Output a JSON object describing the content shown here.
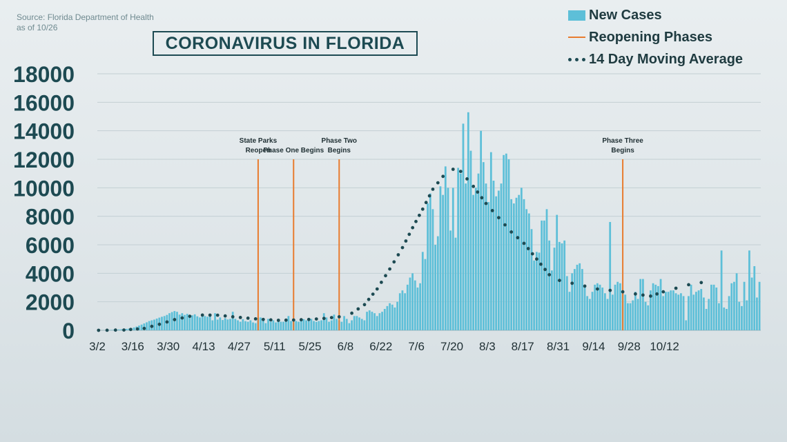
{
  "source": {
    "line1": "Source: Florida Department of Health",
    "line2": "as of 10/26"
  },
  "title": "CORONAVIRUS IN FLORIDA",
  "legend": [
    {
      "label": "New Cases",
      "kind": "bar",
      "color": "#5dbfd8"
    },
    {
      "label": "Reopening Phases",
      "kind": "line",
      "color": "#e87b2e"
    },
    {
      "label": "14 Day Moving Average",
      "kind": "dots",
      "color": "#1d4a52"
    }
  ],
  "colors": {
    "bar": "#5dbfd8",
    "phase": "#e87b2e",
    "average": "#1d4a52",
    "axis_text": "#1d4a52",
    "grid": "#c3cfd3"
  },
  "chart_data": {
    "type": "bar",
    "x_start_date": "3/2",
    "x_tick_labels": [
      "3/2",
      "3/16",
      "3/30",
      "4/13",
      "4/27",
      "5/11",
      "5/25",
      "6/8",
      "6/22",
      "7/6",
      "7/20",
      "8/3",
      "8/17",
      "8/31",
      "9/14",
      "9/28",
      "10/12"
    ],
    "ylim": [
      0,
      18000
    ],
    "y_ticks": [
      0,
      2000,
      4000,
      6000,
      8000,
      10000,
      12000,
      14000,
      16000,
      18000
    ],
    "grid": true,
    "series": [
      {
        "name": "New Cases",
        "type": "bar",
        "values": [
          2,
          5,
          10,
          15,
          20,
          30,
          40,
          50,
          60,
          70,
          80,
          100,
          120,
          150,
          200,
          260,
          330,
          400,
          480,
          560,
          650,
          700,
          750,
          820,
          890,
          950,
          1000,
          1080,
          1200,
          1280,
          1350,
          1300,
          1100,
          1200,
          1080,
          1150,
          1000,
          1050,
          1120,
          980,
          900,
          1050,
          1000,
          950,
          1100,
          700,
          1200,
          750,
          900,
          720,
          850,
          760,
          800,
          1300,
          800,
          700,
          600,
          780,
          640,
          600,
          700,
          550,
          500,
          900,
          900,
          700,
          500,
          800,
          600,
          700,
          550,
          800,
          600,
          600,
          650,
          1000,
          650,
          700,
          650,
          600,
          750,
          780,
          700,
          800,
          800,
          650,
          600,
          650,
          700,
          1200,
          900,
          600,
          700,
          1100,
          800,
          700,
          600,
          1000,
          800,
          500,
          700,
          1000,
          1000,
          900,
          800,
          700,
          1300,
          1400,
          1300,
          1200,
          1000,
          1200,
          1300,
          1500,
          1700,
          1900,
          1800,
          1600,
          2000,
          2600,
          2800,
          2600,
          3200,
          3700,
          4000,
          3500,
          3000,
          3300,
          5500,
          5000,
          8900,
          9600,
          8500,
          6000,
          6600,
          10100,
          9500,
          11500,
          10000,
          7000,
          10000,
          6500,
          11400,
          11000,
          14500,
          10300,
          15300,
          12600,
          9500,
          10000,
          11000,
          14000,
          11800,
          10300,
          9000,
          12500,
          10500,
          9400,
          9800,
          10300,
          12300,
          12400,
          12000,
          9200,
          8900,
          9300,
          9500,
          10000,
          9200,
          8500,
          8200,
          7100,
          4900,
          5500,
          5450,
          7700,
          7700,
          8500,
          6300,
          4200,
          5800,
          8100,
          6200,
          6100,
          6300,
          3800,
          2700,
          4000,
          4300,
          4600,
          4700,
          4300,
          3100,
          2400,
          2200,
          2700,
          3200,
          3300,
          3200,
          3000,
          2600,
          2200,
          7600,
          2500,
          3200,
          3400,
          3300,
          2800,
          2500,
          1900,
          1900,
          2100,
          2700,
          2200,
          3600,
          3600,
          2000,
          1750,
          2800,
          3300,
          3200,
          3100,
          3600,
          2400,
          2700,
          2700,
          2800,
          2800,
          2600,
          2500,
          2600,
          2400,
          700,
          2400,
          3200,
          2500,
          2700,
          2800,
          2900,
          2300,
          1500,
          2200,
          3200,
          3200,
          3000,
          1900,
          5600,
          1600,
          1500,
          2400,
          3300,
          3400,
          4000,
          2000,
          1700,
          3400,
          2100,
          5600,
          3700,
          4500,
          2300,
          3400
        ]
      },
      {
        "name": "14 Day Moving Average",
        "type": "line",
        "points": [
          {
            "x": "3/2",
            "y": 0
          },
          {
            "x": "3/12",
            "y": 20
          },
          {
            "x": "3/20",
            "y": 130
          },
          {
            "x": "3/26",
            "y": 420
          },
          {
            "x": "4/1",
            "y": 750
          },
          {
            "x": "4/7",
            "y": 980
          },
          {
            "x": "4/12",
            "y": 1070
          },
          {
            "x": "4/18",
            "y": 1060
          },
          {
            "x": "4/24",
            "y": 950
          },
          {
            "x": "4/30",
            "y": 850
          },
          {
            "x": "5/6",
            "y": 760
          },
          {
            "x": "5/12",
            "y": 700
          },
          {
            "x": "5/18",
            "y": 720
          },
          {
            "x": "5/24",
            "y": 760
          },
          {
            "x": "5/30",
            "y": 830
          },
          {
            "x": "6/5",
            "y": 950
          },
          {
            "x": "6/10",
            "y": 1200
          },
          {
            "x": "6/15",
            "y": 1800
          },
          {
            "x": "6/20",
            "y": 2900
          },
          {
            "x": "6/25",
            "y": 4300
          },
          {
            "x": "6/30",
            "y": 5800
          },
          {
            "x": "7/4",
            "y": 7200
          },
          {
            "x": "7/8",
            "y": 8500
          },
          {
            "x": "7/12",
            "y": 9900
          },
          {
            "x": "7/16",
            "y": 10800
          },
          {
            "x": "7/20",
            "y": 11300
          },
          {
            "x": "7/23",
            "y": 11150
          },
          {
            "x": "7/28",
            "y": 10100
          },
          {
            "x": "8/2",
            "y": 8900
          },
          {
            "x": "8/7",
            "y": 7900
          },
          {
            "x": "8/12",
            "y": 6900
          },
          {
            "x": "8/17",
            "y": 6100
          },
          {
            "x": "8/22",
            "y": 5000
          },
          {
            "x": "8/27",
            "y": 3900
          },
          {
            "x": "8/31",
            "y": 3500
          },
          {
            "x": "9/5",
            "y": 3300
          },
          {
            "x": "9/10",
            "y": 3100
          },
          {
            "x": "9/15",
            "y": 2900
          },
          {
            "x": "9/20",
            "y": 2800
          },
          {
            "x": "9/25",
            "y": 2700
          },
          {
            "x": "9/30",
            "y": 2550
          },
          {
            "x": "10/6",
            "y": 2400
          },
          {
            "x": "10/11",
            "y": 2700
          },
          {
            "x": "10/16",
            "y": 2950
          },
          {
            "x": "10/21",
            "y": 3200
          },
          {
            "x": "10/26",
            "y": 3350
          }
        ]
      }
    ],
    "phases": [
      {
        "date": "5/4",
        "label_lines": [
          "State Parks",
          "Reopen"
        ],
        "top_value": 12000
      },
      {
        "date": "5/18",
        "label_lines": [
          "Phase One Begins"
        ],
        "top_value": 12000
      },
      {
        "date": "6/5",
        "label_lines": [
          "Phase Two",
          "Begins"
        ],
        "top_value": 12000
      },
      {
        "date": "9/25",
        "label_lines": [
          "Phase Three",
          "Begins"
        ],
        "top_value": 12000
      }
    ]
  }
}
